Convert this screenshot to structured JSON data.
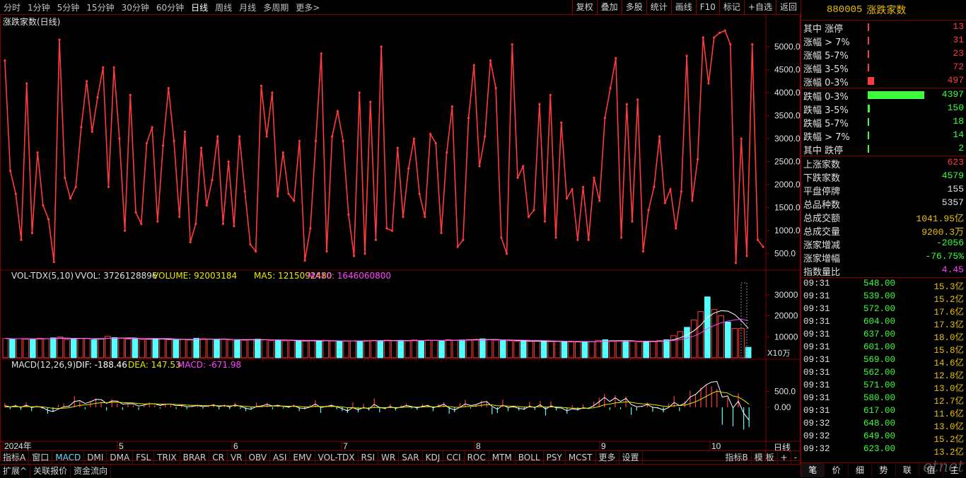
{
  "toolbar": {
    "periods": [
      "分时",
      "1分钟",
      "5分钟",
      "15分钟",
      "30分钟",
      "60分钟",
      "日线",
      "周线",
      "月线",
      "多周期",
      "更多>"
    ],
    "active_period": "日线",
    "tools": [
      "复权",
      "叠加",
      "多股",
      "统计",
      "画线",
      "F10",
      "标记",
      "+自选",
      "返回"
    ]
  },
  "main_chart": {
    "title": "涨跌家数(日线)",
    "y_ticks": [
      "5000.0",
      "4500.0",
      "4000.0",
      "3500.0",
      "3000.0",
      "2500.0",
      "2000.0",
      "1500.0",
      "1000.0",
      "500.0"
    ],
    "line_color": "#ff3b3b"
  },
  "chart_data": [
    {
      "type": "line",
      "title": "涨跌家数(日线)",
      "ylim": [
        250,
        5400
      ],
      "series": [
        {
          "values": [
            4700,
            2300,
            1800,
            800,
            4200,
            950,
            2700,
            1550,
            1250,
            320,
            5150,
            2150,
            1700,
            1950,
            3250,
            4250,
            3150,
            3900,
            4550,
            1950,
            4550,
            3000,
            1000,
            3950,
            1400,
            1150,
            2900,
            3250,
            1200,
            2850,
            4100,
            2950,
            1300,
            3150,
            750,
            1150,
            2800,
            1550,
            2100,
            3050,
            1150,
            2500,
            1100,
            3050,
            1850,
            700,
            550,
            4150,
            3050,
            4000,
            1750,
            2700,
            1800,
            1650,
            2950,
            350,
            1050,
            2950,
            4850,
            550,
            3050,
            3600,
            2950,
            1350,
            450,
            4000,
            500,
            3800,
            800,
            5000,
            1050,
            1000,
            2800,
            1300,
            2350,
            3000,
            1800,
            1300,
            3100,
            2900,
            950,
            2700,
            3700,
            650,
            800,
            3450,
            4600,
            2400,
            3050,
            4700,
            4100,
            850,
            500,
            5050,
            2150,
            2400,
            1300,
            1450,
            3750,
            1200,
            3950,
            850,
            3350,
            1700,
            1900,
            800,
            1950,
            800,
            2150,
            1650,
            3450,
            4100,
            4750,
            850,
            3750,
            1200,
            3850,
            550,
            1450,
            1950,
            3050,
            1600,
            1900,
            1050,
            1850,
            4800,
            1650,
            2550,
            5200,
            4200,
            5200,
            5300,
            5350,
            5050,
            300,
            3000,
            450,
            5050,
            800,
            650
          ]
        }
      ]
    },
    {
      "type": "bar",
      "title": "VOL-TDX(5,10)",
      "ylim": [
        0,
        35000
      ],
      "series": [
        {
          "values": [
            9200,
            9000,
            9100,
            8800,
            8900,
            9300,
            9100,
            9500,
            10000,
            8700,
            8900,
            9200,
            9300,
            8500,
            9000,
            10200,
            9600,
            9400,
            8900,
            9100,
            8700,
            8800,
            9200,
            9000,
            8600,
            8400,
            8700,
            8500,
            9300,
            9100,
            8900,
            8600,
            8800,
            8500,
            8300,
            8400,
            8700,
            8900,
            8600,
            8200,
            8400,
            8100,
            8300,
            8000,
            7900,
            8200,
            8100,
            8300,
            8000,
            7800,
            7900,
            8100,
            8000,
            8200,
            8300,
            8200,
            8400,
            8100,
            8300,
            8000,
            8500,
            8200,
            8400,
            8300,
            8100,
            8600,
            8300,
            8500,
            8700,
            8800,
            9000,
            8600,
            8400,
            8200,
            8100,
            7900,
            8000,
            7800,
            8000,
            7900,
            7700,
            7800,
            7900,
            7600,
            7500,
            7600,
            7700,
            8300,
            8600,
            8100,
            8000,
            7900,
            7800,
            7600,
            7900,
            7700,
            8200,
            8600,
            10500,
            12500,
            14500,
            18000,
            22000,
            29000,
            23000,
            20000,
            17000,
            14000,
            14000,
            5000
          ]
        }
      ],
      "ma5": 1215092480,
      "ma10": 1646060800
    },
    {
      "type": "bar",
      "title": "MACD(12,26,9)",
      "ylim": [
        -900,
        900
      ],
      "series": [
        {
          "values": [
            120,
            -60,
            90,
            -80,
            150,
            -120,
            60,
            -40,
            -200,
            -150,
            80,
            120,
            60,
            350,
            180,
            -60,
            200,
            280,
            150,
            -100,
            250,
            120,
            -80,
            100,
            60,
            -80,
            90,
            150,
            60,
            -40,
            120,
            80,
            -50,
            60,
            -60,
            40,
            80,
            -40,
            60,
            100,
            -70,
            90,
            -60,
            150,
            -50,
            -120,
            -80,
            150,
            60,
            140,
            -60,
            80,
            -40,
            -20,
            90,
            -120,
            -60,
            80,
            220,
            -180,
            60,
            100,
            -60,
            -120,
            -180,
            150,
            -160,
            110,
            -100,
            280,
            -160,
            -60,
            100,
            -100,
            60,
            120,
            -40,
            -80,
            100,
            80,
            -120,
            100,
            160,
            -200,
            -150,
            130,
            230,
            -40,
            100,
            210,
            170,
            -220,
            -180,
            240,
            -120,
            50,
            -100,
            -80,
            170,
            -80,
            200,
            -260,
            190,
            -100,
            -30,
            -200,
            60,
            -100,
            90,
            -60,
            180,
            300,
            420,
            -80,
            380,
            -60,
            340,
            -240,
            -100,
            40,
            150,
            -140,
            -40,
            -160,
            120,
            350,
            -120,
            190,
            520,
            400,
            620,
            700,
            660,
            570,
            -550,
            300,
            -600,
            450,
            -700,
            -620
          ]
        }
      ],
      "dif": -188.46,
      "dea": 147.53,
      "macd": -671.98
    }
  ],
  "vol_chart": {
    "indicator": "VOL-TDX(5,10)",
    "vvol_label": "VVOL: 3726128896",
    "volume_label": "VOLUME: 92003184",
    "ma5_label": "MA5: 1215092480",
    "ma10_label": "MA10: 1646060800",
    "y_ticks": [
      "30000",
      "20000",
      "10000"
    ],
    "unit": "X10万"
  },
  "macd_chart": {
    "indicator": "MACD(12,26,9)",
    "dif_label": "DIF: -188.46",
    "dea_label": "DEA: 147.53",
    "macd_label": "MACD: -671.98",
    "y_ticks": [
      "500.0",
      "0.00"
    ]
  },
  "x_axis": {
    "labels": [
      "2024年",
      "5",
      "6",
      "7",
      "8",
      "9",
      "10"
    ],
    "period_tag": "日线"
  },
  "right_panel": {
    "code": "880005",
    "name": "涨跌家数",
    "up_rows": [
      {
        "k": "其中 涨停",
        "v": "13",
        "frac": 0.003
      },
      {
        "k": "涨幅 > 7%",
        "v": "31",
        "frac": 0.007
      },
      {
        "k": "涨幅 5-7%",
        "v": "23",
        "frac": 0.005
      },
      {
        "k": "涨幅 3-5%",
        "v": "72",
        "frac": 0.016
      },
      {
        "k": "涨幅 0-3%",
        "v": "497",
        "frac": 0.113
      }
    ],
    "down_rows": [
      {
        "k": "跌幅 0-3%",
        "v": "4397",
        "frac": 1.0
      },
      {
        "k": "跌幅 3-5%",
        "v": "150",
        "frac": 0.034
      },
      {
        "k": "跌幅 5-7%",
        "v": "18",
        "frac": 0.004
      },
      {
        "k": "跌幅 > 7%",
        "v": "14",
        "frac": 0.003
      },
      {
        "k": "其中 跌停",
        "v": "2",
        "frac": 0.001
      }
    ],
    "stats": [
      {
        "k": "上涨家数",
        "v": "623",
        "c": "#ff3b3b"
      },
      {
        "k": "下跌家数",
        "v": "4579",
        "c": "#3bff3b"
      },
      {
        "k": "平盘停牌",
        "v": "155",
        "c": "#e0e0e0"
      },
      {
        "k": "总品种数",
        "v": "5357",
        "c": "#e0e0e0"
      },
      {
        "k": "总成交额",
        "v": "1041.95亿",
        "c": "#e8c000"
      },
      {
        "k": "总成交量",
        "v": "9200.3万",
        "c": "#e8c000"
      },
      {
        "k": "涨家增减",
        "v": "-2056",
        "c": "#3bff3b"
      },
      {
        "k": "涨家增幅",
        "v": "-76.75%",
        "c": "#3bff3b"
      },
      {
        "k": "指数量比",
        "v": "4.45",
        "c": "#ff44ff"
      }
    ],
    "ticks": [
      {
        "t": "09:31",
        "p": "548.00",
        "a": "15.3亿"
      },
      {
        "t": "09:31",
        "p": "539.00",
        "a": "15.2亿"
      },
      {
        "t": "09:31",
        "p": "572.00",
        "a": "17.6亿"
      },
      {
        "t": "09:31",
        "p": "604.00",
        "a": "17.3亿"
      },
      {
        "t": "09:31",
        "p": "637.00",
        "a": "18.0亿"
      },
      {
        "t": "09:31",
        "p": "601.00",
        "a": "15.8亿"
      },
      {
        "t": "09:31",
        "p": "569.00",
        "a": "14.6亿"
      },
      {
        "t": "09:31",
        "p": "562.00",
        "a": "12.8亿"
      },
      {
        "t": "09:31",
        "p": "571.00",
        "a": "13.0亿"
      },
      {
        "t": "09:31",
        "p": "580.00",
        "a": "12.7亿"
      },
      {
        "t": "09:31",
        "p": "617.00",
        "a": "11.6亿"
      },
      {
        "t": "09:32",
        "p": "648.00",
        "a": "13.0亿"
      },
      {
        "t": "09:32",
        "p": "649.00",
        "a": "15.2亿"
      },
      {
        "t": "09:32",
        "p": "623.00",
        "a": "13.2亿"
      }
    ],
    "tabs": [
      "笔",
      "价",
      "细",
      "势",
      "联",
      "值",
      "主"
    ]
  },
  "indicator_bar": {
    "left_tag": "指标A",
    "items": [
      "窗口",
      "MACD",
      "DMI",
      "DMA",
      "FSL",
      "TRIX",
      "BRAR",
      "CR",
      "VR",
      "OBV",
      "ASI",
      "EMV",
      "VOL-TDX",
      "RSI",
      "WR",
      "SAR",
      "KDJ",
      "CCI",
      "ROC",
      "MTM",
      "BOLL",
      "PSY",
      "MCST",
      "更多",
      "设置"
    ],
    "active": "MACD",
    "right_items": [
      "指标B",
      "模 板",
      "+",
      "-"
    ]
  },
  "bottom_bar": {
    "items": [
      "扩展^",
      "关联报价",
      "资金流向"
    ]
  },
  "colors": {
    "up": "#ff3b3b",
    "down": "#3bff3b",
    "vol_down": "#54ffff",
    "dea": "#e8e800",
    "dif": "#ffffff",
    "ma10": "#ff44ff",
    "grid": "#800000"
  },
  "watermark": "etnet"
}
